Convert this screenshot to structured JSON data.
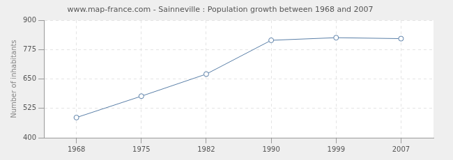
{
  "chart_data": {
    "type": "line",
    "title": "www.map-france.com - Sainneville : Population growth between 1968 and 2007",
    "y_label": "Number of inhabitants",
    "categories": [
      "1968",
      "1975",
      "1982",
      "1990",
      "1999",
      "2007"
    ],
    "values": [
      486,
      577,
      671,
      815,
      826,
      822
    ],
    "color": "#5a7fa8",
    "marker": "circle",
    "line_style": "solid",
    "ylim": [
      400,
      900
    ],
    "yticks": [
      400,
      525,
      650,
      775,
      900
    ],
    "grid": true
  }
}
